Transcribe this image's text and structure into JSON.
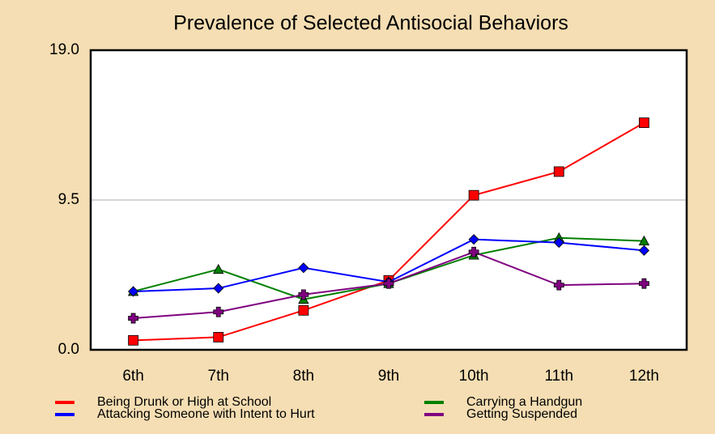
{
  "chart_data": {
    "type": "line",
    "title": "Prevalence of Selected Antisocial Behaviors",
    "categories": [
      "6th",
      "7th",
      "8th",
      "9th",
      "10th",
      "11th",
      "12th"
    ],
    "series": [
      {
        "name": "Being Drunk or High at School",
        "color": "#ff0000",
        "marker": "square",
        "values": [
          0.6,
          0.8,
          2.5,
          4.4,
          9.8,
          11.3,
          14.4
        ]
      },
      {
        "name": "Carrying a Handgun",
        "color": "#008000",
        "marker": "triangle",
        "values": [
          3.7,
          5.1,
          3.2,
          4.2,
          6.0,
          7.1,
          6.9
        ]
      },
      {
        "name": "Attacking Someone with Intent to Hurt",
        "color": "#0000ff",
        "marker": "diamond",
        "values": [
          3.7,
          3.9,
          5.2,
          4.3,
          7.0,
          6.8,
          6.3
        ]
      },
      {
        "name": "Getting Suspended",
        "color": "#800080",
        "marker": "plus",
        "values": [
          2.0,
          2.4,
          3.5,
          4.2,
          6.2,
          4.1,
          4.2
        ]
      }
    ],
    "ylim": [
      0,
      19
    ],
    "yticks": [
      {
        "value": 0,
        "label": "0.0"
      },
      9.5,
      {
        "value": 19,
        "label": "19.0"
      }
    ],
    "grid": true,
    "legend": "bottom"
  }
}
